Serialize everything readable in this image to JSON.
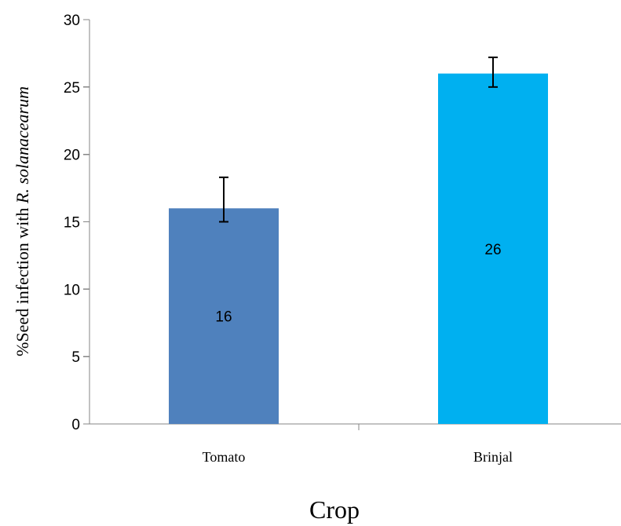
{
  "chart_data": {
    "type": "bar",
    "title": "",
    "xlabel": "Crop",
    "ylabel": {
      "prefix": "%Seed infection with ",
      "italic": "R. solanacearum"
    },
    "categories": [
      "Tomato",
      "Brinjal"
    ],
    "values": [
      16,
      26
    ],
    "data_labels": [
      "16",
      "26"
    ],
    "error_bars": [
      {
        "low": 15,
        "high": 18.3
      },
      {
        "low": 25,
        "high": 27.2
      }
    ],
    "bar_colors": [
      "#4F81BD",
      "#00B0F0"
    ],
    "ylim": [
      0,
      30
    ],
    "yticks": [
      0,
      5,
      10,
      15,
      20,
      25,
      30
    ],
    "grid": false,
    "legend": "none"
  }
}
